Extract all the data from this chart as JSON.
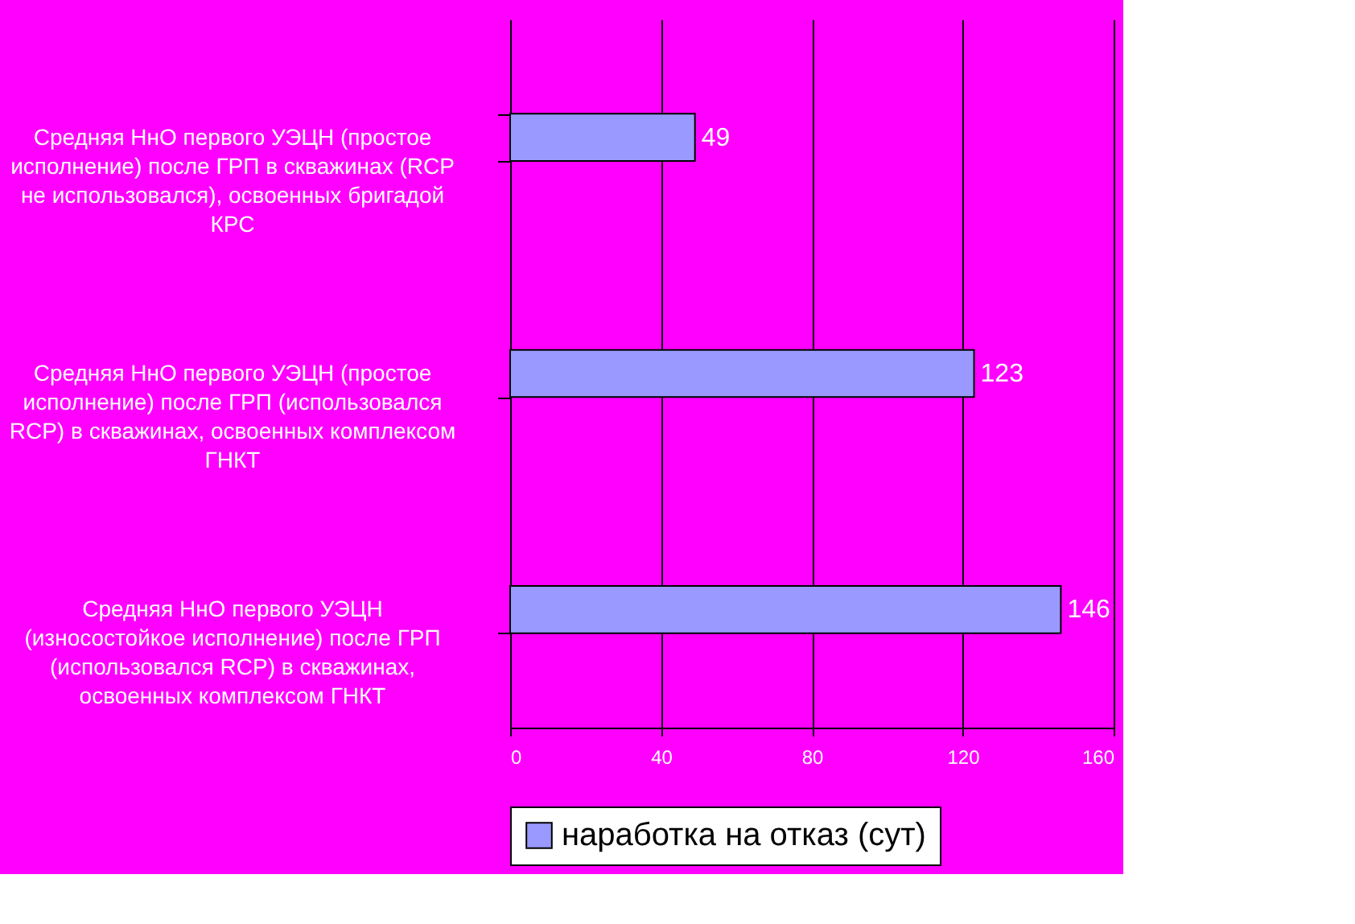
{
  "chart_data": {
    "type": "bar",
    "orientation": "horizontal",
    "categories": [
      "Средняя НнО первого УЭЦН (простое\nисполнение) после ГРП в скважинах (RCP\nне использовался),  освоенных бригадой\nКРС",
      "Средняя НнО  первого УЭЦН (простое\nисполнение) после ГРП (использовался\nRCP) в скважинах, освоенных комплексом\nГНКТ",
      "Средняя НнО  первого УЭЦН\n(износостойкое  исполнение) после ГРП\n(использовался RCP) в скважинах,\nосвоенных комплексом ГНКТ"
    ],
    "series": [
      {
        "name": "наработка на отказ (сут)",
        "color": "#9999ff",
        "values": [
          49,
          123,
          146
        ]
      }
    ],
    "xlim": [
      0,
      160
    ],
    "xticks": [
      0,
      40,
      80,
      120,
      160
    ],
    "grid": "x",
    "legend": "bottom",
    "data_labels": true
  }
}
